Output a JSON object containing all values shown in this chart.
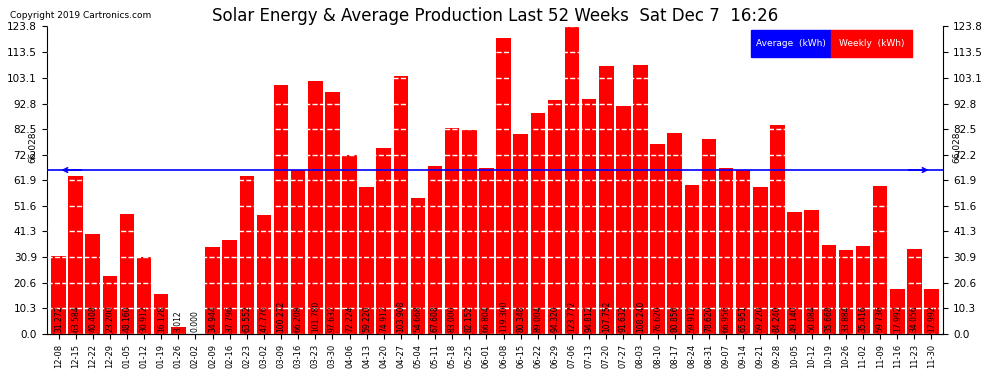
{
  "title": "Solar Energy & Average Production Last 52 Weeks  Sat Dec 7  16:26",
  "copyright": "Copyright 2019 Cartronics.com",
  "average_line": 66.028,
  "bar_color": "#FF0000",
  "average_line_color": "#0000FF",
  "yticks": [
    0.0,
    10.3,
    20.6,
    30.9,
    41.3,
    51.6,
    61.9,
    72.2,
    82.5,
    92.8,
    103.1,
    113.5,
    123.8
  ],
  "ymax": 123.8,
  "legend_avg_label": "Average  (kWh)",
  "legend_weekly_label": "Weekly  (kWh)",
  "categories": [
    "12-08",
    "12-15",
    "12-22",
    "12-29",
    "01-05",
    "01-12",
    "01-19",
    "01-26",
    "02-02",
    "02-09",
    "02-16",
    "02-23",
    "03-02",
    "03-09",
    "03-16",
    "03-23",
    "03-30",
    "04-06",
    "04-13",
    "04-20",
    "04-27",
    "05-04",
    "05-11",
    "05-18",
    "05-25",
    "06-01",
    "06-08",
    "06-15",
    "06-22",
    "06-29",
    "07-06",
    "07-13",
    "07-20",
    "07-27",
    "08-03",
    "08-10",
    "08-17",
    "08-24",
    "08-31",
    "09-07",
    "09-14",
    "09-21",
    "09-28",
    "10-05",
    "10-12",
    "10-19",
    "10-26",
    "11-02",
    "11-09",
    "11-16",
    "11-23",
    "11-30"
  ],
  "values": [
    31.272,
    63.584,
    40.408,
    23.2,
    48.16,
    30.912,
    16.128,
    3.012,
    0.0,
    34.944,
    37.796,
    63.552,
    47.776,
    100.272,
    66.208,
    101.78,
    97.632,
    72.224,
    59.22,
    74.912,
    103.908,
    54.668,
    67.608,
    83.0,
    82.152,
    66.804,
    119.3,
    80.348,
    89.004,
    94.32,
    123.772,
    94.812,
    107.752,
    91.632,
    108.24,
    76.62,
    80.856,
    59.912,
    78.62,
    66.956,
    65.951,
    59.22,
    84.24,
    49.14,
    50.084,
    35.668,
    33.884,
    35.416,
    59.736,
    17.992,
    34.056,
    17.992
  ],
  "value_label_fontsize": 5.5,
  "xlabel_fontsize": 6.0,
  "ylabel_fontsize": 7.5,
  "title_fontsize": 12,
  "background_color": "#FFFFFF",
  "plot_bg_color": "#FFFFFF",
  "grid_color": "#C8C8C8"
}
